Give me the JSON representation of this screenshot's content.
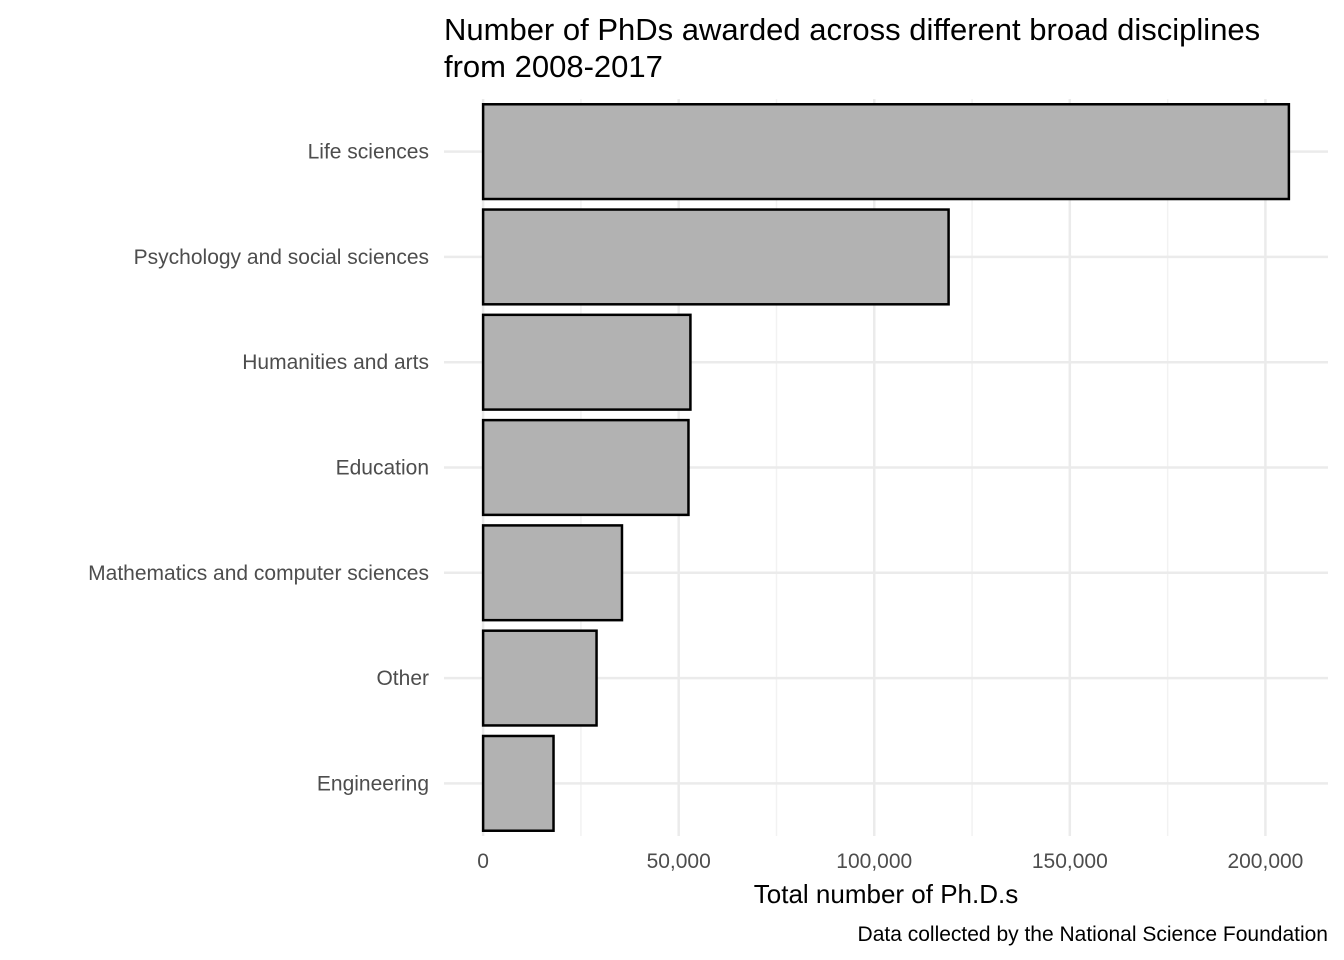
{
  "chart_data": {
    "type": "bar",
    "orientation": "horizontal",
    "title": "Number of PhDs awarded across different broad disciplines",
    "title_line2": "from 2008-2017",
    "xlabel": "Total number of Ph.D.s",
    "ylabel": "",
    "caption": "Data collected by the National Science Foundation",
    "categories": [
      "Life sciences",
      "Psychology and social sciences",
      "Humanities and arts",
      "Education",
      "Mathematics and computer sciences",
      "Other",
      "Engineering"
    ],
    "values": [
      206000,
      119000,
      53000,
      52500,
      35500,
      29000,
      18000
    ],
    "xlim": [
      -10000,
      216000
    ],
    "x_ticks": [
      0,
      50000,
      100000,
      150000,
      200000
    ],
    "x_tick_labels": [
      "0",
      "50,000",
      "100,000",
      "150,000",
      "200,000"
    ],
    "grid": true,
    "legend": "none",
    "colors": {
      "bar_fill": "#b2b2b2",
      "bar_stroke": "#000000",
      "grid_major": "#ebebeb",
      "grid_minor": "#f2f2f2"
    }
  }
}
